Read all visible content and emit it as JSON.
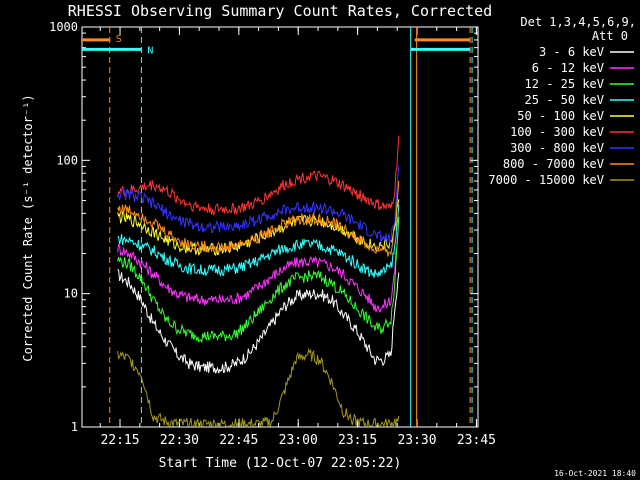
{
  "chart_data": {
    "type": "line",
    "title": "RHESSI Observing Summary Count Rates, Corrected",
    "xlabel": "Start Time (12-Oct-07 22:05:22)",
    "ylabel": "Corrected Count Rate (s⁻¹ detector⁻¹)",
    "yscale": "log",
    "ylim": [
      1,
      1000
    ],
    "xlim_minutes_after_start": [
      0,
      100
    ],
    "x_ticks": [
      {
        "label": "22:15",
        "t": 9.6
      },
      {
        "label": "22:30",
        "t": 24.6
      },
      {
        "label": "22:45",
        "t": 39.6
      },
      {
        "label": "23:00",
        "t": 54.6
      },
      {
        "label": "23:15",
        "t": 69.6
      },
      {
        "label": "23:30",
        "t": 84.6
      },
      {
        "label": "23:45",
        "t": 99.6
      }
    ],
    "y_ticks": [
      {
        "label": "1",
        "v": 1
      },
      {
        "label": "10",
        "v": 10
      },
      {
        "label": "100",
        "v": 100
      },
      {
        "label": "1000",
        "v": 1000
      }
    ],
    "legend_header": [
      "Det 1,3,4,5,6,9,",
      "Att 0"
    ],
    "legend_position": "right",
    "time_points": [
      9,
      12,
      15,
      18,
      21,
      24,
      27,
      30,
      33,
      36,
      39,
      42,
      45,
      48,
      51,
      54,
      57,
      60,
      63,
      66,
      69,
      72,
      74,
      76,
      78,
      79,
      80
    ],
    "series": [
      {
        "name": "3 - 6 keV",
        "color": "#ffffff",
        "values": [
          14,
          12,
          9,
          6,
          4.5,
          3.5,
          3,
          2.8,
          2.8,
          2.8,
          3,
          3.5,
          4.5,
          6,
          8,
          9.5,
          10,
          10,
          9,
          7,
          5.5,
          4,
          3.2,
          3.2,
          3.5,
          8,
          15
        ]
      },
      {
        "name": "6 - 12 keV",
        "color": "#ff33ff",
        "values": [
          22,
          20,
          17,
          14,
          11.5,
          10,
          9.3,
          9,
          9,
          9,
          9.2,
          10,
          11.5,
          13.5,
          15.5,
          17,
          17.5,
          17,
          16,
          14,
          11.5,
          9.5,
          8,
          8,
          9,
          15,
          35
        ]
      },
      {
        "name": "12 - 25 keV",
        "color": "#33ff33",
        "values": [
          18,
          16.5,
          13,
          9,
          6.5,
          5.5,
          5,
          4.8,
          4.8,
          4.8,
          5,
          6,
          7.5,
          9.5,
          11.5,
          13,
          13.5,
          13.5,
          12,
          10,
          8,
          6.5,
          5.5,
          5.5,
          6.5,
          12,
          40
        ]
      },
      {
        "name": "25 - 50 keV",
        "color": "#33ffff",
        "values": [
          26,
          25,
          23,
          21,
          18.5,
          16.5,
          15.5,
          15,
          15,
          15.2,
          15.5,
          16.5,
          18,
          20,
          22,
          23,
          23.5,
          23,
          21.5,
          19.5,
          17,
          15,
          14,
          14.5,
          16,
          22,
          45
        ]
      },
      {
        "name": "50 - 100 keV",
        "color": "#ffff33",
        "values": [
          38,
          36,
          33,
          29,
          25.5,
          23,
          22,
          21.5,
          21.5,
          21.8,
          22.5,
          24,
          26.5,
          29,
          32,
          34.5,
          35.5,
          35,
          33,
          30,
          27,
          24,
          22.5,
          23,
          24,
          30,
          55
        ]
      },
      {
        "name": "100 - 300 keV",
        "color": "#ff3333",
        "values": [
          58,
          59,
          62,
          66,
          60,
          52,
          47,
          44,
          43,
          43,
          43.5,
          45,
          50,
          57,
          65,
          72,
          76,
          75,
          71,
          64,
          57,
          51,
          47,
          45,
          43,
          60,
          150
        ]
      },
      {
        "name": "300 - 800 keV",
        "color": "#3333ff",
        "values": [
          56,
          55,
          52,
          47,
          41,
          36,
          33.5,
          32,
          31.5,
          31.5,
          32,
          34,
          36.5,
          39.5,
          42,
          44,
          45,
          44,
          42,
          38.5,
          34,
          30,
          27.5,
          26,
          25.5,
          35,
          100
        ]
      },
      {
        "name": "800 - 7000 keV",
        "color": "#ff8c1a",
        "values": [
          44,
          42,
          39,
          34,
          29,
          25.5,
          23.5,
          22.5,
          22.3,
          22.3,
          23,
          24.5,
          27,
          30,
          33,
          35.5,
          36.5,
          36,
          34,
          30.5,
          26.5,
          23,
          21,
          20.5,
          21,
          30,
          70
        ]
      },
      {
        "name": "7000 - 15000 keV",
        "color": "#a0961a",
        "values": [
          3.5,
          3.2,
          2.5,
          1.2,
          1.1,
          1.05,
          1.05,
          1.05,
          1.05,
          1.05,
          1.05,
          1.05,
          1.05,
          1.1,
          1.8,
          3.2,
          3.5,
          3.2,
          2.2,
          1.3,
          1.1,
          1.05,
          1.05,
          1.05,
          1.05,
          1.1,
          1.1
        ]
      }
    ],
    "annotations": [
      {
        "label": "S",
        "color": "#ff8c1a",
        "t": 7,
        "level": 800,
        "segments": [
          [
            0,
            7
          ],
          [
            84,
            98
          ]
        ]
      },
      {
        "label": "N",
        "color": "#33ffff",
        "t": 15,
        "level": 680,
        "segments": [
          [
            0,
            15
          ],
          [
            83,
            98
          ]
        ]
      }
    ],
    "event_lines": [
      {
        "color": "#ff8c1a",
        "t": 7,
        "style": "dashed"
      },
      {
        "color": "#33ffff",
        "t": 15,
        "style": "dashed"
      },
      {
        "color": "#33ffff",
        "t": 83,
        "style": "solid"
      },
      {
        "color": "#ff8c1a",
        "t": 84.5,
        "style": "solid"
      },
      {
        "color": "#ff8c1a",
        "t": 98,
        "style": "dashed"
      },
      {
        "color": "#33ffff",
        "t": 98.5,
        "style": "dashed"
      }
    ]
  },
  "footer": {
    "timestamp": "16-Oct-2021 18:40"
  }
}
